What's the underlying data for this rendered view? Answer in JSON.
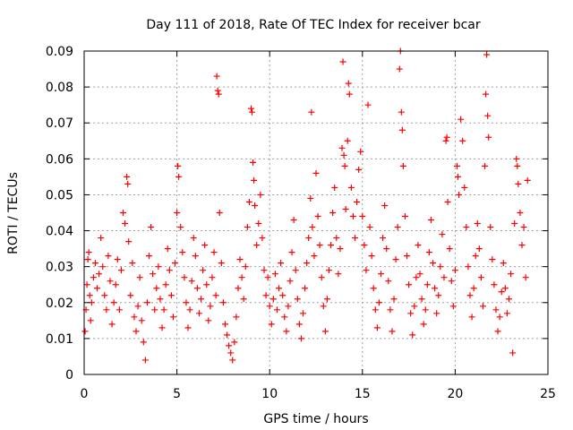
{
  "chart_data": {
    "type": "scatter",
    "title": "Day 111 of 2018, Rate Of TEC Index for receiver bcar",
    "xlabel": "GPS time / hours",
    "ylabel": "ROTI / TECUs",
    "xlim": [
      0,
      25
    ],
    "ylim": [
      0,
      0.09
    ],
    "x_ticks": [
      0,
      5,
      10,
      15,
      20,
      25
    ],
    "y_ticks": [
      0,
      0.01,
      0.02,
      0.03,
      0.04,
      0.05,
      0.06,
      0.07,
      0.08,
      0.09
    ],
    "x_tick_labels": [
      "0",
      "5",
      "10",
      "15",
      "20",
      "25"
    ],
    "y_tick_labels": [
      "0",
      "0.01",
      "0.02",
      "0.03",
      "0.04",
      "0.05",
      "0.06",
      "0.07",
      "0.08",
      "0.09"
    ],
    "grid": true,
    "marker": "plus",
    "color": "#ff0000",
    "series": [
      {
        "points": [
          [
            0.05,
            0.012
          ],
          [
            0.1,
            0.018
          ],
          [
            0.15,
            0.025
          ],
          [
            0.2,
            0.032
          ],
          [
            0.25,
            0.034
          ],
          [
            0.3,
            0.022
          ],
          [
            0.35,
            0.015
          ],
          [
            0.4,
            0.02
          ],
          [
            0.5,
            0.027
          ],
          [
            0.6,
            0.031
          ],
          [
            0.7,
            0.024
          ],
          [
            0.8,
            0.028
          ],
          [
            0.9,
            0.038
          ],
          [
            1.0,
            0.03
          ],
          [
            1.1,
            0.022
          ],
          [
            1.2,
            0.018
          ],
          [
            1.3,
            0.033
          ],
          [
            1.4,
            0.026
          ],
          [
            1.5,
            0.014
          ],
          [
            1.6,
            0.02
          ],
          [
            1.7,
            0.025
          ],
          [
            1.8,
            0.032
          ],
          [
            1.9,
            0.018
          ],
          [
            2.0,
            0.029
          ],
          [
            2.1,
            0.045
          ],
          [
            2.2,
            0.042
          ],
          [
            2.3,
            0.055
          ],
          [
            2.35,
            0.053
          ],
          [
            2.4,
            0.037
          ],
          [
            2.5,
            0.022
          ],
          [
            2.6,
            0.031
          ],
          [
            2.7,
            0.016
          ],
          [
            2.8,
            0.012
          ],
          [
            2.9,
            0.019
          ],
          [
            3.0,
            0.027
          ],
          [
            3.1,
            0.015
          ],
          [
            3.2,
            0.009
          ],
          [
            3.3,
            0.004
          ],
          [
            3.4,
            0.02
          ],
          [
            3.5,
            0.033
          ],
          [
            3.6,
            0.041
          ],
          [
            3.7,
            0.028
          ],
          [
            3.8,
            0.018
          ],
          [
            3.9,
            0.024
          ],
          [
            4.0,
            0.03
          ],
          [
            4.1,
            0.021
          ],
          [
            4.2,
            0.013
          ],
          [
            4.3,
            0.018
          ],
          [
            4.4,
            0.025
          ],
          [
            4.5,
            0.035
          ],
          [
            4.6,
            0.029
          ],
          [
            4.7,
            0.022
          ],
          [
            4.8,
            0.016
          ],
          [
            4.9,
            0.031
          ],
          [
            5.0,
            0.045
          ],
          [
            5.05,
            0.058
          ],
          [
            5.1,
            0.055
          ],
          [
            5.2,
            0.041
          ],
          [
            5.3,
            0.034
          ],
          [
            5.4,
            0.027
          ],
          [
            5.5,
            0.02
          ],
          [
            5.6,
            0.013
          ],
          [
            5.7,
            0.018
          ],
          [
            5.8,
            0.026
          ],
          [
            5.9,
            0.038
          ],
          [
            6.0,
            0.033
          ],
          [
            6.1,
            0.024
          ],
          [
            6.2,
            0.017
          ],
          [
            6.3,
            0.021
          ],
          [
            6.4,
            0.029
          ],
          [
            6.5,
            0.036
          ],
          [
            6.6,
            0.025
          ],
          [
            6.7,
            0.015
          ],
          [
            6.8,
            0.019
          ],
          [
            6.9,
            0.027
          ],
          [
            7.0,
            0.034
          ],
          [
            7.1,
            0.022
          ],
          [
            7.15,
            0.083
          ],
          [
            7.2,
            0.079
          ],
          [
            7.25,
            0.078
          ],
          [
            7.3,
            0.045
          ],
          [
            7.4,
            0.031
          ],
          [
            7.5,
            0.02
          ],
          [
            7.6,
            0.014
          ],
          [
            7.7,
            0.011
          ],
          [
            7.8,
            0.008
          ],
          [
            7.9,
            0.006
          ],
          [
            8.0,
            0.004
          ],
          [
            8.1,
            0.009
          ],
          [
            8.2,
            0.016
          ],
          [
            8.3,
            0.024
          ],
          [
            8.4,
            0.032
          ],
          [
            8.5,
            0.027
          ],
          [
            8.6,
            0.021
          ],
          [
            8.7,
            0.03
          ],
          [
            8.8,
            0.041
          ],
          [
            8.9,
            0.048
          ],
          [
            9.0,
            0.074
          ],
          [
            9.05,
            0.073
          ],
          [
            9.1,
            0.059
          ],
          [
            9.15,
            0.054
          ],
          [
            9.2,
            0.047
          ],
          [
            9.3,
            0.036
          ],
          [
            9.4,
            0.042
          ],
          [
            9.5,
            0.05
          ],
          [
            9.6,
            0.038
          ],
          [
            9.7,
            0.029
          ],
          [
            9.8,
            0.022
          ],
          [
            9.9,
            0.027
          ],
          [
            10.0,
            0.019
          ],
          [
            10.1,
            0.014
          ],
          [
            10.2,
            0.021
          ],
          [
            10.3,
            0.028
          ],
          [
            10.4,
            0.018
          ],
          [
            10.5,
            0.024
          ],
          [
            10.6,
            0.031
          ],
          [
            10.7,
            0.022
          ],
          [
            10.8,
            0.016
          ],
          [
            10.9,
            0.012
          ],
          [
            11.0,
            0.019
          ],
          [
            11.1,
            0.026
          ],
          [
            11.2,
            0.034
          ],
          [
            11.3,
            0.043
          ],
          [
            11.4,
            0.029
          ],
          [
            11.5,
            0.021
          ],
          [
            11.6,
            0.014
          ],
          [
            11.7,
            0.01
          ],
          [
            11.8,
            0.017
          ],
          [
            11.9,
            0.024
          ],
          [
            12.0,
            0.031
          ],
          [
            12.1,
            0.038
          ],
          [
            12.2,
            0.049
          ],
          [
            12.25,
            0.073
          ],
          [
            12.3,
            0.041
          ],
          [
            12.4,
            0.033
          ],
          [
            12.5,
            0.056
          ],
          [
            12.6,
            0.044
          ],
          [
            12.7,
            0.036
          ],
          [
            12.8,
            0.027
          ],
          [
            12.9,
            0.019
          ],
          [
            13.0,
            0.012
          ],
          [
            13.1,
            0.021
          ],
          [
            13.2,
            0.029
          ],
          [
            13.3,
            0.036
          ],
          [
            13.4,
            0.045
          ],
          [
            13.5,
            0.052
          ],
          [
            13.6,
            0.038
          ],
          [
            13.7,
            0.028
          ],
          [
            13.8,
            0.035
          ],
          [
            13.9,
            0.063
          ],
          [
            13.95,
            0.087
          ],
          [
            14.0,
            0.061
          ],
          [
            14.05,
            0.058
          ],
          [
            14.1,
            0.046
          ],
          [
            14.2,
            0.065
          ],
          [
            14.25,
            0.081
          ],
          [
            14.3,
            0.078
          ],
          [
            14.4,
            0.052
          ],
          [
            14.5,
            0.044
          ],
          [
            14.6,
            0.038
          ],
          [
            14.7,
            0.048
          ],
          [
            14.8,
            0.057
          ],
          [
            14.9,
            0.062
          ],
          [
            15.0,
            0.044
          ],
          [
            15.1,
            0.036
          ],
          [
            15.2,
            0.029
          ],
          [
            15.3,
            0.075
          ],
          [
            15.4,
            0.041
          ],
          [
            15.5,
            0.033
          ],
          [
            15.6,
            0.024
          ],
          [
            15.7,
            0.018
          ],
          [
            15.8,
            0.013
          ],
          [
            15.9,
            0.02
          ],
          [
            16.0,
            0.028
          ],
          [
            16.1,
            0.038
          ],
          [
            16.2,
            0.047
          ],
          [
            16.3,
            0.035
          ],
          [
            16.4,
            0.026
          ],
          [
            16.5,
            0.018
          ],
          [
            16.6,
            0.012
          ],
          [
            16.7,
            0.021
          ],
          [
            16.8,
            0.032
          ],
          [
            16.9,
            0.041
          ],
          [
            17.0,
            0.085
          ],
          [
            17.05,
            0.09
          ],
          [
            17.1,
            0.073
          ],
          [
            17.15,
            0.068
          ],
          [
            17.2,
            0.058
          ],
          [
            17.3,
            0.044
          ],
          [
            17.4,
            0.033
          ],
          [
            17.5,
            0.025
          ],
          [
            17.6,
            0.017
          ],
          [
            17.7,
            0.011
          ],
          [
            17.8,
            0.019
          ],
          [
            17.9,
            0.027
          ],
          [
            18.0,
            0.036
          ],
          [
            18.1,
            0.028
          ],
          [
            18.2,
            0.021
          ],
          [
            18.3,
            0.014
          ],
          [
            18.4,
            0.018
          ],
          [
            18.5,
            0.025
          ],
          [
            18.6,
            0.034
          ],
          [
            18.7,
            0.043
          ],
          [
            18.8,
            0.031
          ],
          [
            18.9,
            0.024
          ],
          [
            19.0,
            0.017
          ],
          [
            19.1,
            0.022
          ],
          [
            19.2,
            0.03
          ],
          [
            19.3,
            0.039
          ],
          [
            19.4,
            0.027
          ],
          [
            19.5,
            0.065
          ],
          [
            19.55,
            0.066
          ],
          [
            19.6,
            0.048
          ],
          [
            19.7,
            0.035
          ],
          [
            19.8,
            0.026
          ],
          [
            19.9,
            0.019
          ],
          [
            20.0,
            0.029
          ],
          [
            20.1,
            0.058
          ],
          [
            20.15,
            0.055
          ],
          [
            20.2,
            0.05
          ],
          [
            20.3,
            0.071
          ],
          [
            20.4,
            0.065
          ],
          [
            20.5,
            0.052
          ],
          [
            20.6,
            0.041
          ],
          [
            20.7,
            0.03
          ],
          [
            20.8,
            0.022
          ],
          [
            20.9,
            0.016
          ],
          [
            21.0,
            0.024
          ],
          [
            21.1,
            0.033
          ],
          [
            21.2,
            0.042
          ],
          [
            21.3,
            0.035
          ],
          [
            21.4,
            0.027
          ],
          [
            21.5,
            0.019
          ],
          [
            21.6,
            0.058
          ],
          [
            21.65,
            0.078
          ],
          [
            21.7,
            0.089
          ],
          [
            21.75,
            0.072
          ],
          [
            21.8,
            0.066
          ],
          [
            21.9,
            0.041
          ],
          [
            22.0,
            0.032
          ],
          [
            22.1,
            0.025
          ],
          [
            22.2,
            0.018
          ],
          [
            22.3,
            0.012
          ],
          [
            22.4,
            0.016
          ],
          [
            22.5,
            0.023
          ],
          [
            22.6,
            0.031
          ],
          [
            22.7,
            0.024
          ],
          [
            22.8,
            0.017
          ],
          [
            22.9,
            0.021
          ],
          [
            23.0,
            0.028
          ],
          [
            23.1,
            0.006
          ],
          [
            23.2,
            0.042
          ],
          [
            23.3,
            0.06
          ],
          [
            23.35,
            0.058
          ],
          [
            23.4,
            0.053
          ],
          [
            23.5,
            0.045
          ],
          [
            23.6,
            0.036
          ],
          [
            23.7,
            0.041
          ],
          [
            23.8,
            0.027
          ],
          [
            23.9,
            0.054
          ]
        ]
      }
    ]
  }
}
